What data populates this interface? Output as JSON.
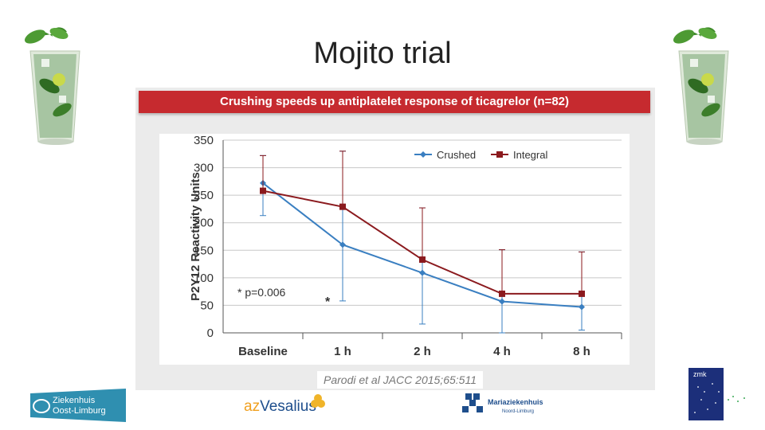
{
  "slide": {
    "title": "Mojito trial"
  },
  "figure": {
    "banner": "Crushing speeds up antiplatelet response of ticagrelor (n=82)",
    "citation": "Parodi et al JACC 2015;65:511",
    "annotation": "* p=0.006",
    "marker": "*"
  },
  "chart_data": {
    "type": "line",
    "title": "Crushing speeds up antiplatelet response of ticagrelor (n=82)",
    "ylabel": "P2Y12 Reactivity Units",
    "xlabel": "",
    "categories": [
      "Baseline",
      "1 h",
      "2 h",
      "4 h",
      "8 h"
    ],
    "ylim": [
      0,
      350
    ],
    "yticks": [
      0,
      50,
      100,
      150,
      200,
      250,
      300,
      350
    ],
    "grid": true,
    "legend_position": "top-right",
    "series": [
      {
        "name": "Crushed",
        "color": "#3a7fc1",
        "marker": "diamond",
        "values": [
          272,
          160,
          109,
          57,
          47
        ],
        "error_upper": [
          322,
          330,
          227,
          151,
          147
        ],
        "error_lower": [
          213,
          58,
          16,
          0,
          5
        ]
      },
      {
        "name": "Integral",
        "color": "#8b1a1e",
        "marker": "square",
        "values": [
          258,
          229,
          133,
          71,
          71
        ],
        "error_upper": [
          322,
          330,
          227,
          151,
          147
        ],
        "error_lower": null
      }
    ]
  },
  "logos": {
    "zol_line1": "Ziekenhuis",
    "zol_line2": "Oost-Limburg",
    "vesalius_prefix": "az",
    "vesalius_name": "Vesalius",
    "mariaziekenhuis": "Mariaziekenhuis",
    "mariaziekenhuis_sub": "Noord-Limburg",
    "zmk": "zmk"
  }
}
